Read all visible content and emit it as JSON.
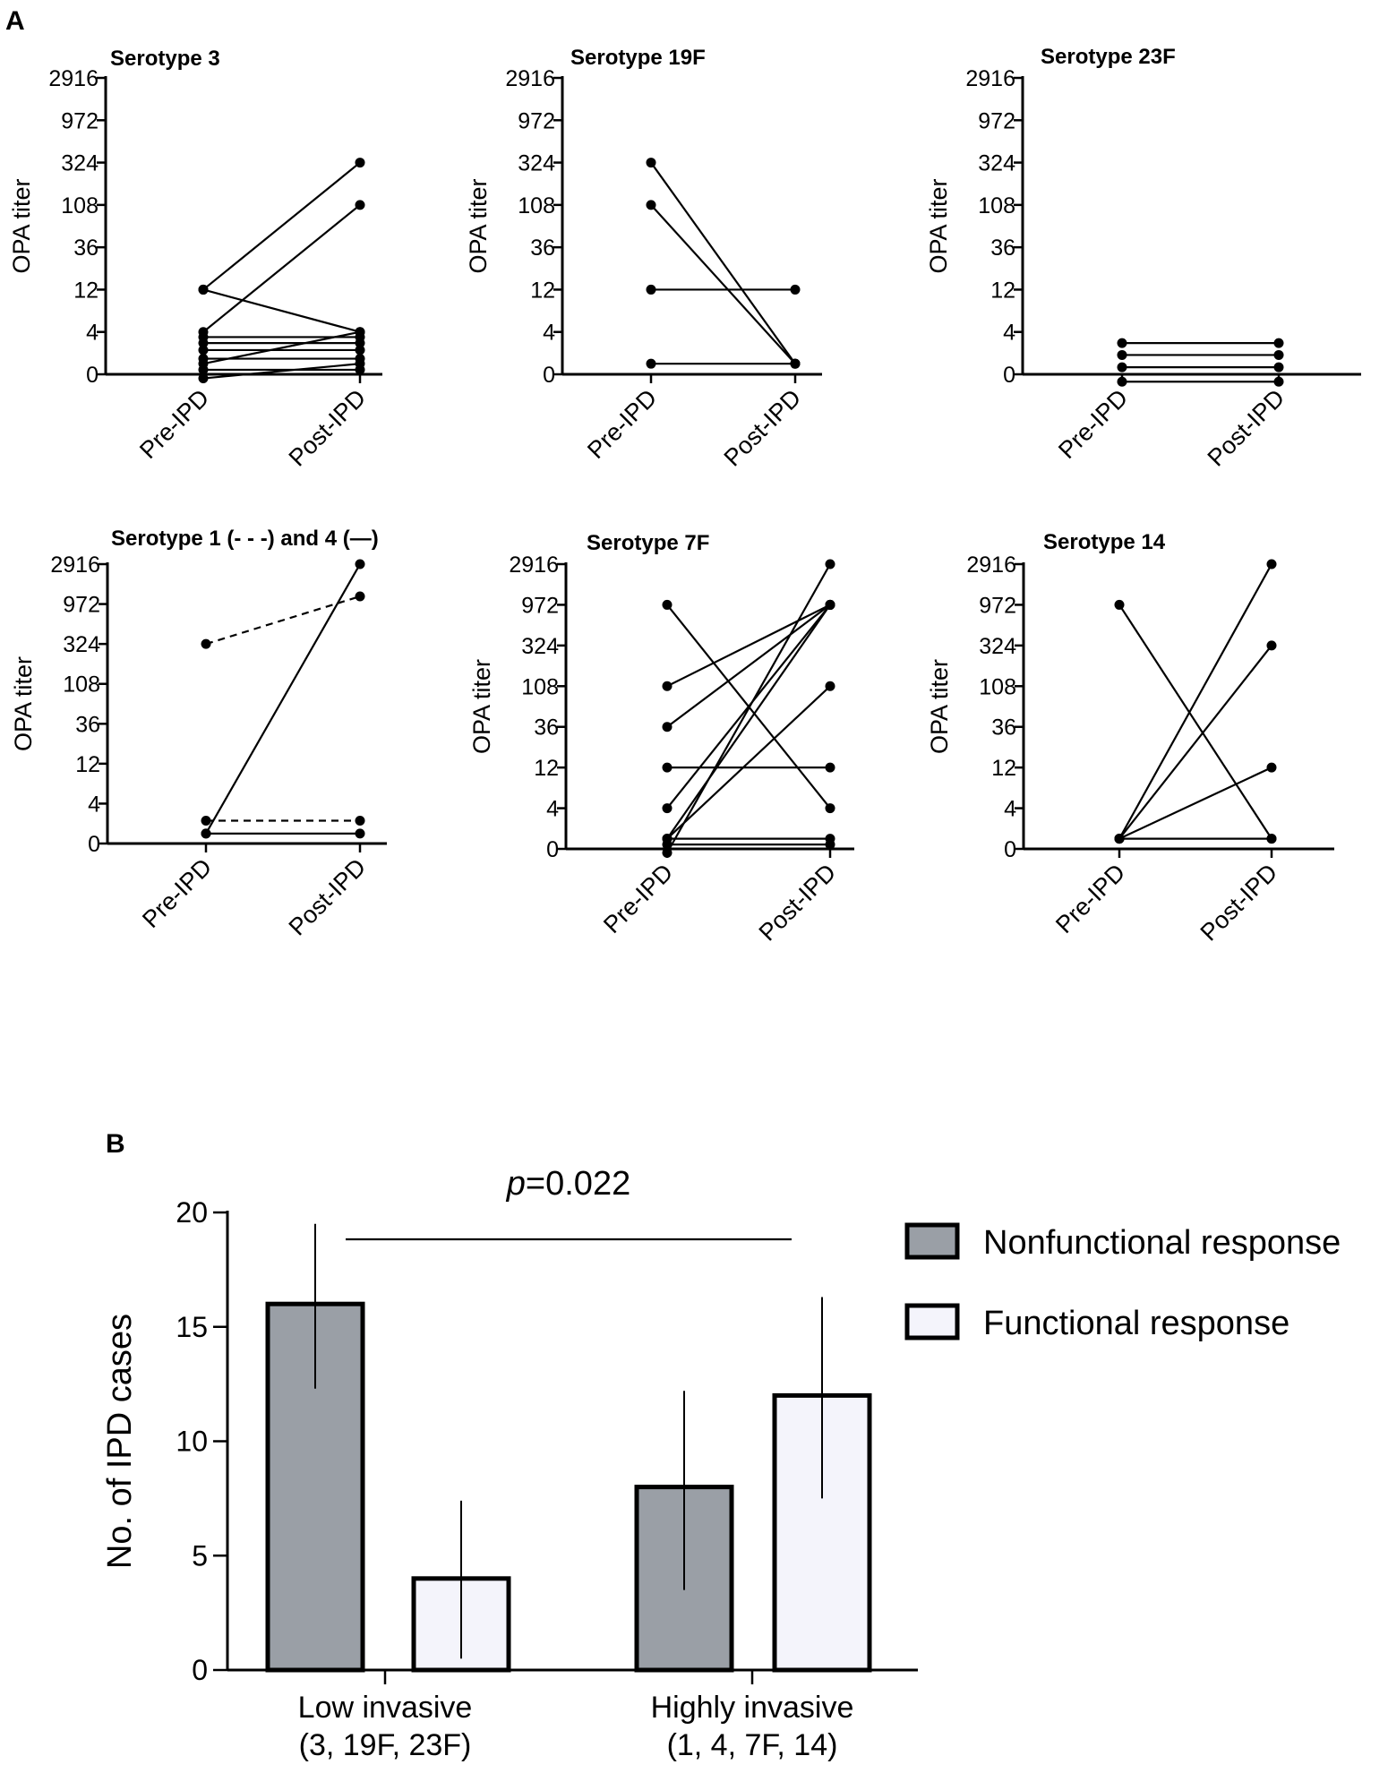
{
  "panels": {
    "a_label": "A",
    "b_label": "B"
  },
  "chart_data": [
    {
      "type": "line",
      "title": "Serotype 3",
      "ylabel": "OPA titer",
      "categories": [
        "Pre-IPD",
        "Post-IPD"
      ],
      "yscale": "log3",
      "yticks": [
        "0",
        "4",
        "12",
        "36",
        "108",
        "324",
        "972",
        "2916"
      ],
      "pairs": [
        {
          "pre": 12,
          "post": 324,
          "style": "solid"
        },
        {
          "pre": 12,
          "post": 4,
          "style": "solid"
        },
        {
          "pre": 4,
          "post": 108,
          "style": "solid"
        },
        {
          "pre": 1,
          "post": 4,
          "style": "solid"
        },
        {
          "pre": 3.5,
          "post": 3.5,
          "style": "solid"
        },
        {
          "pre": 3,
          "post": 3,
          "style": "solid"
        },
        {
          "pre": 2.5,
          "post": 2.5,
          "style": "solid"
        },
        {
          "pre": 2,
          "post": 2,
          "style": "solid"
        },
        {
          "pre": 1.5,
          "post": 1.5,
          "style": "solid"
        },
        {
          "pre": 1.2,
          "post": 1,
          "style": "solid"
        }
      ]
    },
    {
      "type": "line",
      "title": "Serotype 19F",
      "ylabel": "OPA titer",
      "categories": [
        "Pre-IPD",
        "Post-IPD"
      ],
      "yscale": "log3",
      "yticks": [
        "0",
        "4",
        "12",
        "36",
        "108",
        "324",
        "972",
        "2916"
      ],
      "pairs": [
        {
          "pre": 324,
          "post": 1,
          "style": "solid"
        },
        {
          "pre": 108,
          "post": 1,
          "style": "solid"
        },
        {
          "pre": 12,
          "post": 12,
          "style": "solid"
        },
        {
          "pre": 1,
          "post": 1,
          "style": "solid"
        }
      ]
    },
    {
      "type": "line",
      "title": "Serotype 23F",
      "ylabel": "OPA titer",
      "categories": [
        "Pre-IPD",
        "Post-IPD"
      ],
      "yscale": "log3",
      "yticks": [
        "0",
        "4",
        "12",
        "36",
        "108",
        "324",
        "972",
        "2916"
      ],
      "pairs": [
        {
          "pre": 3,
          "post": 3,
          "style": "solid"
        },
        {
          "pre": 2.2,
          "post": 2.2,
          "style": "solid"
        },
        {
          "pre": 1.6,
          "post": 1.6,
          "style": "solid"
        },
        {
          "pre": 1.1,
          "post": 1.1,
          "style": "solid"
        }
      ]
    },
    {
      "type": "line",
      "title": "Serotype 1 (- - -) and 4 (—)",
      "ylabel": "OPA titer",
      "categories": [
        "Pre-IPD",
        "Post-IPD"
      ],
      "yscale": "log3",
      "yticks": [
        "0",
        "4",
        "12",
        "36",
        "108",
        "324",
        "972",
        "2916"
      ],
      "pairs": [
        {
          "pre": 324,
          "post": 1200,
          "style": "dashed"
        },
        {
          "pre": 2.5,
          "post": 2.5,
          "style": "dashed"
        },
        {
          "pre": 1,
          "post": 2916,
          "style": "solid"
        },
        {
          "pre": 1,
          "post": 1,
          "style": "solid"
        }
      ]
    },
    {
      "type": "line",
      "title": "Serotype 7F",
      "ylabel": "OPA titer",
      "categories": [
        "Pre-IPD",
        "Post-IPD"
      ],
      "yscale": "log3",
      "yticks": [
        "0",
        "4",
        "12",
        "36",
        "108",
        "324",
        "972",
        "2916"
      ],
      "pairs": [
        {
          "pre": 972,
          "post": 4,
          "style": "solid"
        },
        {
          "pre": 108,
          "post": 972,
          "style": "solid"
        },
        {
          "pre": 36,
          "post": 972,
          "style": "solid"
        },
        {
          "pre": 12,
          "post": 12,
          "style": "solid"
        },
        {
          "pre": 4,
          "post": 972,
          "style": "solid"
        },
        {
          "pre": 1.5,
          "post": 1.5,
          "style": "solid"
        },
        {
          "pre": 1.2,
          "post": 2916,
          "style": "solid"
        },
        {
          "pre": 1,
          "post": 108,
          "style": "solid"
        },
        {
          "pre": 1,
          "post": 972,
          "style": "solid"
        },
        {
          "pre": 1,
          "post": 1,
          "style": "solid"
        }
      ]
    },
    {
      "type": "line",
      "title": "Serotype 14",
      "ylabel": "OPA titer",
      "categories": [
        "Pre-IPD",
        "Post-IPD"
      ],
      "yscale": "log3",
      "yticks": [
        "0",
        "4",
        "12",
        "36",
        "108",
        "324",
        "972",
        "2916"
      ],
      "pairs": [
        {
          "pre": 972,
          "post": 1,
          "style": "solid"
        },
        {
          "pre": 1,
          "post": 2916,
          "style": "solid"
        },
        {
          "pre": 1,
          "post": 324,
          "style": "solid"
        },
        {
          "pre": 1,
          "post": 12,
          "style": "solid"
        },
        {
          "pre": 1,
          "post": 1,
          "style": "solid"
        }
      ]
    },
    {
      "type": "bar",
      "ylabel": "No. of IPD cases",
      "categories": [
        {
          "line1": "Low invasive",
          "line2": "(3, 19F, 23F)"
        },
        {
          "line1": "Highly invasive",
          "line2": "(1, 4, 7F, 14)"
        }
      ],
      "series": [
        {
          "name": "Nonfunctional response",
          "color": "#9a9fa6",
          "values": [
            16,
            8
          ],
          "err_low": [
            12.3,
            3.5
          ],
          "err_high": [
            19.5,
            12.2
          ]
        },
        {
          "name": "Functional response",
          "color": "#f4f4fb",
          "values": [
            4,
            12
          ],
          "err_low": [
            0.5,
            7.5
          ],
          "err_high": [
            7.4,
            16.3
          ]
        }
      ],
      "ylim": [
        0,
        20
      ],
      "yticks": [
        "0",
        "5",
        "10",
        "15",
        "20"
      ],
      "annotation": {
        "p_italic": "p",
        "p_value": "=0.022"
      }
    }
  ]
}
